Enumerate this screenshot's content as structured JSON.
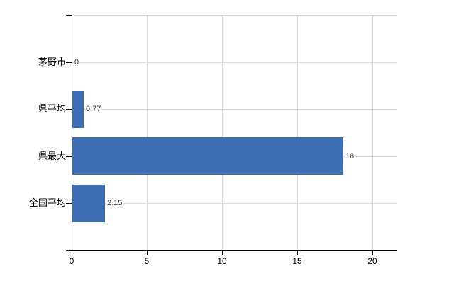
{
  "chart_data": {
    "type": "bar",
    "orientation": "horizontal",
    "title": "",
    "categories": [
      "茅野市",
      "県平均",
      "県最大",
      "全国平均"
    ],
    "values": [
      0,
      0.77,
      18,
      2.15
    ],
    "value_labels": [
      "0",
      "0.77",
      "18",
      "2.15"
    ],
    "series": [
      {
        "name": "値",
        "values": [
          0,
          0.77,
          18,
          2.15
        ]
      }
    ],
    "x_ticks": [
      0,
      5,
      10,
      15,
      20
    ],
    "x_tick_labels": [
      "0",
      "5",
      "10",
      "15",
      "20"
    ],
    "xlim": [
      0,
      21.7
    ],
    "xlabel": "",
    "ylabel": "",
    "grid": true,
    "legend": "none",
    "colors": {
      "bar": "#3d6db3",
      "gridline": "#d9d9d9",
      "axis": "#000000",
      "category_text": "#000000",
      "value_text": "#333333"
    }
  }
}
